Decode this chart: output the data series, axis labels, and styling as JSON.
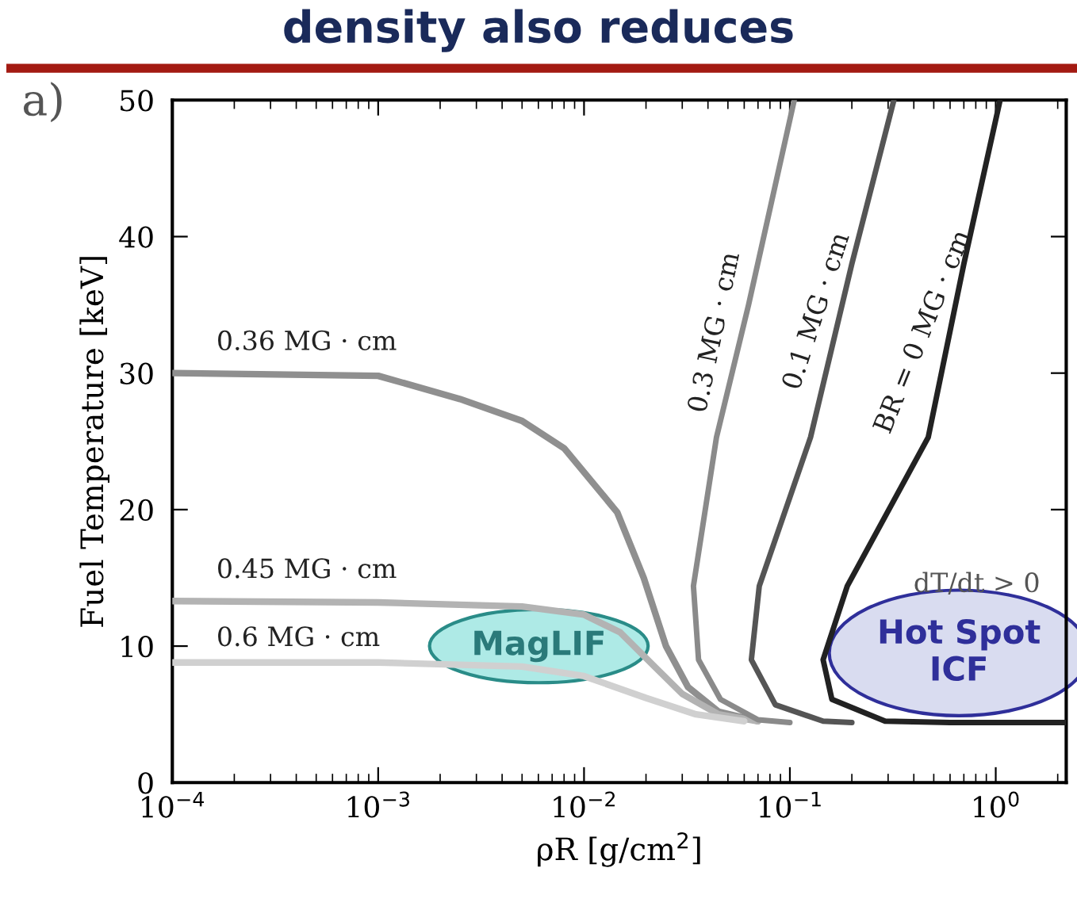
{
  "chart_data": {
    "type": "line",
    "title": "density also reduces",
    "xlabel": "ρR [g/cm$^{2}$]",
    "ylabel": "Fuel Temperature [keV]",
    "log": "x",
    "xlim": [
      0.0001,
      2.2
    ],
    "ylim": [
      0,
      50
    ],
    "xticks": [
      {
        "value": 0.0001,
        "label": "10$^{−4}$"
      },
      {
        "value": 0.001,
        "label": "10$^{−3}$"
      },
      {
        "value": 0.01,
        "label": "10$^{−2}$"
      },
      {
        "value": 0.1,
        "label": "10$^{−1}$"
      },
      {
        "value": 1,
        "label": "10$^{0}$"
      }
    ],
    "yticks": [
      0,
      10,
      20,
      30,
      40,
      50
    ],
    "grid": false,
    "legend": false,
    "marker": "none",
    "line_style": "solid",
    "series": [
      {
        "name": "0.36 MG · cm",
        "color": "#8f8f8f",
        "x": [
          0.0001,
          0.001,
          0.0025,
          0.005,
          0.008,
          0.0145,
          0.0195,
          0.025,
          0.032,
          0.045,
          0.07
        ],
        "values": [
          30.0,
          29.8,
          28.1,
          26.5,
          24.5,
          19.8,
          15,
          10,
          7,
          5.2,
          4.5
        ]
      },
      {
        "name": "0.45 MG · cm",
        "color": "#b3b3b3",
        "x": [
          0.0001,
          0.001,
          0.005,
          0.01,
          0.015,
          0.022,
          0.03,
          0.045,
          0.07
        ],
        "values": [
          13.3,
          13.2,
          12.9,
          12.3,
          11,
          8.5,
          6.5,
          5,
          4.5
        ]
      },
      {
        "name": "0.6 MG · cm",
        "color": "#d0d0d0",
        "x": [
          0.0001,
          0.001,
          0.005,
          0.01,
          0.02,
          0.035,
          0.06
        ],
        "values": [
          8.8,
          8.8,
          8.5,
          7.8,
          6.2,
          5,
          4.5
        ]
      },
      {
        "name": "0.3 MG · cm",
        "color": "#8a8a8a",
        "x": [
          0.105,
          0.063,
          0.044,
          0.034,
          0.036,
          0.046,
          0.07,
          0.1
        ],
        "values": [
          50,
          35,
          25.3,
          14.4,
          9,
          6.1,
          4.6,
          4.4
        ]
      },
      {
        "name": "0.1 MG · cm",
        "color": "#555555",
        "x": [
          0.32,
          0.2,
          0.126,
          0.071,
          0.065,
          0.085,
          0.145,
          0.2
        ],
        "values": [
          50,
          38,
          25.3,
          14.4,
          9,
          5.7,
          4.5,
          4.4
        ]
      },
      {
        "name": "BR = 0 MG · cm",
        "color": "#222222",
        "x": [
          1.05,
          0.7,
          0.47,
          0.19,
          0.145,
          0.16,
          0.29,
          0.6,
          2.2
        ],
        "values": [
          50,
          38,
          25.3,
          14.4,
          9,
          6.1,
          4.5,
          4.4,
          4.4
        ]
      }
    ],
    "annotations": [
      "a)",
      "MagLIF",
      "Hot Spot\nICF",
      "dT/dt > 0"
    ]
  }
}
